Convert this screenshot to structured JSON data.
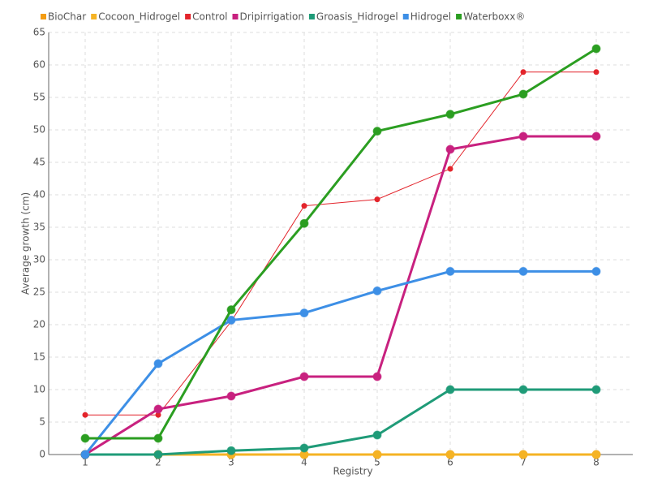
{
  "chart_data": {
    "type": "line",
    "x": [
      1,
      2,
      3,
      4,
      5,
      6,
      7,
      8
    ],
    "xlim": [
      0.5,
      8.5
    ],
    "xticks": [
      1,
      2,
      3,
      4,
      5,
      6,
      7,
      8
    ],
    "ylim": [
      0,
      65
    ],
    "yticks": [
      0,
      5,
      10,
      15,
      20,
      25,
      30,
      35,
      40,
      45,
      50,
      55,
      60,
      65
    ],
    "x_label": "Registry",
    "y_label": "Average growth (cm)",
    "grid": true,
    "legend": "top",
    "series": [
      {
        "name": "BioChar",
        "color": "#f39c12",
        "values": [
          0,
          0,
          0,
          0,
          0,
          0,
          0,
          0
        ]
      },
      {
        "name": "Cocoon_Hidrogel",
        "color": "#f5b324",
        "values": [
          0,
          0,
          0,
          0,
          0,
          0,
          0,
          0
        ]
      },
      {
        "name": "Control",
        "color": "#e3242b",
        "values": [
          6.1,
          6.1,
          20.5,
          38.3,
          39.3,
          44,
          58.9,
          58.9
        ]
      },
      {
        "name": "Dripirrigation",
        "color": "#c8217f",
        "values": [
          0,
          7,
          9,
          12,
          12,
          47,
          49,
          49
        ]
      },
      {
        "name": "Groasis_Hidrogel",
        "color": "#1f9b78",
        "values": [
          0,
          0,
          0.6,
          1,
          3,
          10,
          10,
          10
        ]
      },
      {
        "name": "Hidrogel",
        "color": "#3d8fe6",
        "values": [
          0,
          14,
          20.7,
          21.8,
          25.2,
          28.2,
          28.2,
          28.2
        ]
      },
      {
        "name": "Waterboxx®",
        "color": "#2b9e21",
        "values": [
          2.5,
          2.5,
          22.3,
          35.6,
          49.8,
          52.4,
          55.5,
          62.5
        ]
      }
    ]
  }
}
